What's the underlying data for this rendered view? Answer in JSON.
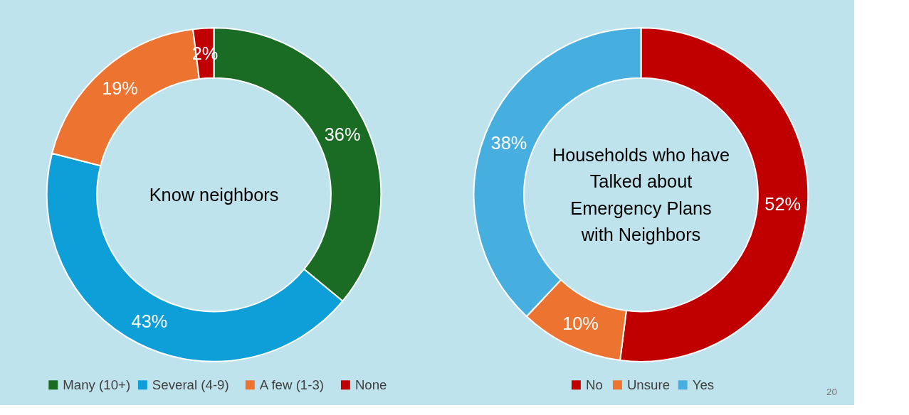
{
  "chart_data": [
    {
      "type": "donut",
      "title": "Know neighbors",
      "categories": [
        "Many (10+)",
        "Several (4-9)",
        "A few (1-3)",
        "None"
      ],
      "values": [
        36,
        43,
        19,
        2
      ],
      "value_labels": [
        "36%",
        "43%",
        "19%",
        "2%"
      ],
      "colors": [
        "#1a6b24",
        "#0e9fd8",
        "#ed7330",
        "#c00000"
      ],
      "legend": "bottom"
    },
    {
      "type": "donut",
      "title": "Households who have\nTalked about\nEmergency Plans\nwith Neighbors",
      "categories": [
        "No",
        "Unsure",
        "Yes"
      ],
      "values": [
        52,
        10,
        38
      ],
      "value_labels": [
        "52%",
        "10%",
        "38%"
      ],
      "colors": [
        "#c00000",
        "#ed7330",
        "#47afe0"
      ],
      "legend": "bottom",
      "annotations": [
        "20"
      ]
    }
  ]
}
